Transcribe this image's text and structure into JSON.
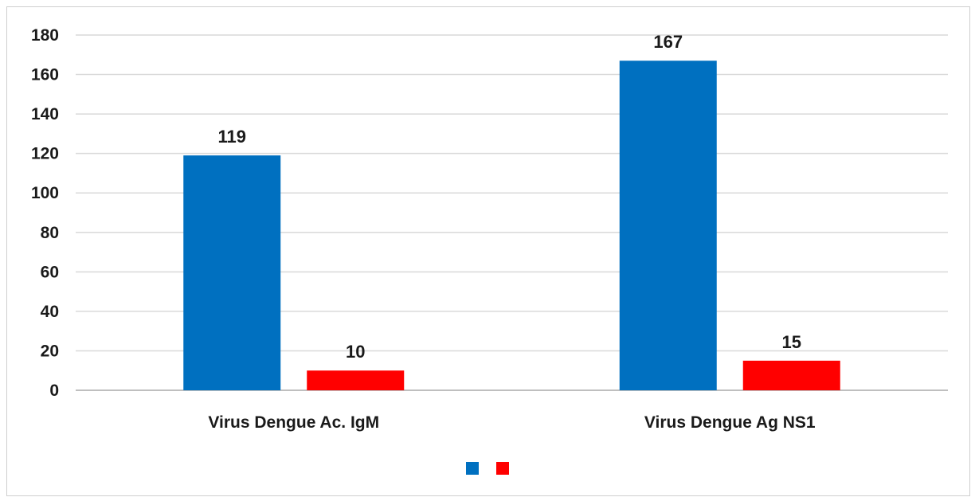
{
  "chart_data": {
    "type": "bar",
    "categories": [
      "Virus Dengue Ac. IgM",
      "Virus Dengue Ag NS1"
    ],
    "series": [
      {
        "values": [
          119,
          167
        ],
        "color": "#0070c0"
      },
      {
        "values": [
          10,
          15
        ],
        "color": "#ff0000"
      }
    ],
    "ylim": [
      0,
      180
    ],
    "yticks": [
      0,
      20,
      40,
      60,
      80,
      100,
      120,
      140,
      160,
      180
    ],
    "ytick_labels": [
      "0",
      "20",
      "40",
      "60",
      "80",
      "100",
      "120",
      "140",
      "160",
      "180"
    ],
    "data_labels": true,
    "grid": true,
    "legend": {
      "position": "bottom",
      "show_names": false
    },
    "title": "",
    "xlabel": "",
    "ylabel": ""
  }
}
